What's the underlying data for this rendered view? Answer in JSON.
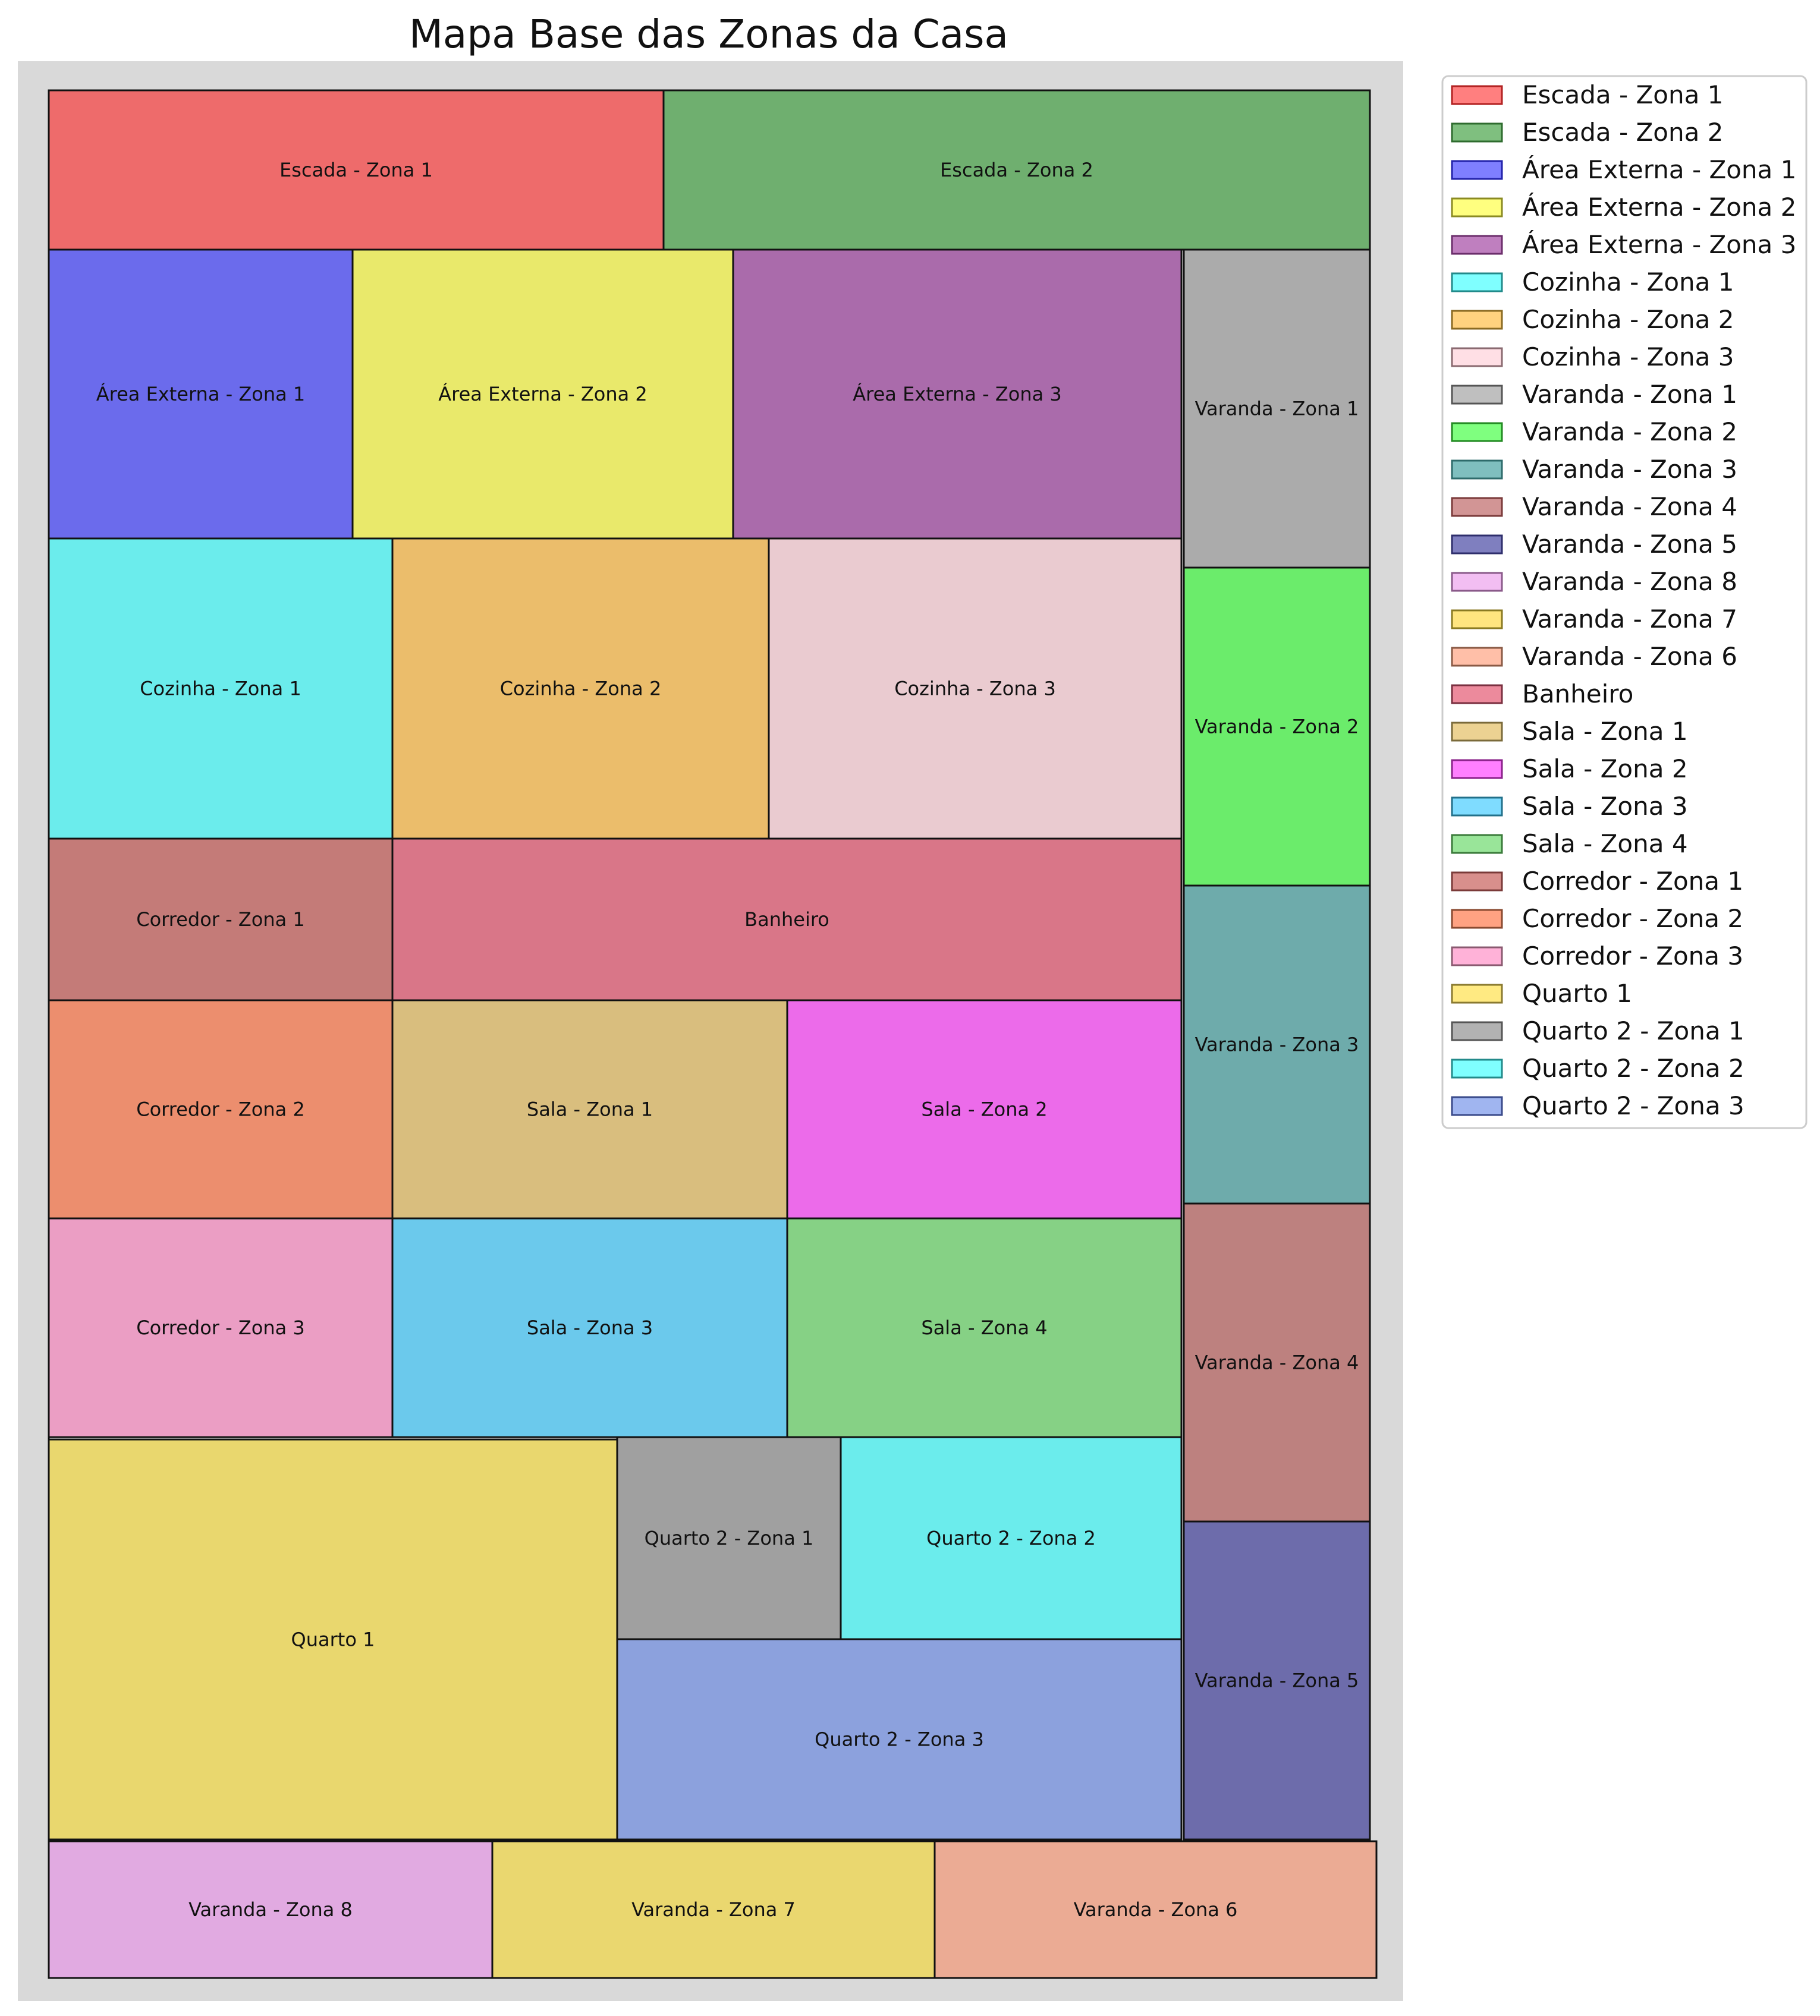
{
  "title": "Mapa Base das Zonas da Casa",
  "zones": [
    {
      "label": "Escada - Zona 1",
      "color": "#ee6b6b"
    },
    {
      "label": "Escada - Zona 2",
      "color": "#6faf6f"
    },
    {
      "label": "Área Externa - Zona 1",
      "color": "#6b6bec"
    },
    {
      "label": "Área Externa - Zona 2",
      "color": "#e9e96b"
    },
    {
      "label": "Área Externa - Zona 3",
      "color": "#aa6bab"
    },
    {
      "label": "Varanda - Zona 1",
      "color": "#ababab"
    },
    {
      "label": "Cozinha - Zona 1",
      "color": "#6becec"
    },
    {
      "label": "Cozinha - Zona 2",
      "color": "#ebbd6b"
    },
    {
      "label": "Cozinha - Zona 3",
      "color": "#eacbd0"
    },
    {
      "label": "Varanda - Zona 2",
      "color": "#6bec6b"
    },
    {
      "label": "Corredor - Zona 1",
      "color": "#c47b78"
    },
    {
      "label": "Banheiro",
      "color": "#d97688"
    },
    {
      "label": "Varanda - Zona 3",
      "color": "#6eabab"
    },
    {
      "label": "Corredor - Zona 2",
      "color": "#ec8e6e"
    },
    {
      "label": "Sala - Zona 1",
      "color": "#d9be7e"
    },
    {
      "label": "Sala - Zona 2",
      "color": "#ec6bea"
    },
    {
      "label": "Varanda - Zona 4",
      "color": "#bd817f"
    },
    {
      "label": "Corredor - Zona 3",
      "color": "#eb9ec4"
    },
    {
      "label": "Sala - Zona 3",
      "color": "#6bc9ec"
    },
    {
      "label": "Sala - Zona 4",
      "color": "#86d185"
    },
    {
      "label": "Quarto 1",
      "color": "#e9d76e"
    },
    {
      "label": "Quarto 2 - Zona 1",
      "color": "#a0a0a0"
    },
    {
      "label": "Quarto 2 - Zona 2",
      "color": "#6becec"
    },
    {
      "label": "Varanda - Zona 5",
      "color": "#6d6cab"
    },
    {
      "label": "Quarto 2 - Zona 3",
      "color": "#8ca1dd"
    },
    {
      "label": "Varanda - Zona 8",
      "color": "#e1aae1"
    },
    {
      "label": "Varanda - Zona 7",
      "color": "#ead76f"
    },
    {
      "label": "Varanda - Zona 6",
      "color": "#ebab94"
    }
  ],
  "legend": [
    {
      "label": "Escada - Zona 1",
      "color": "#ff7f7f",
      "edge": "#b22222"
    },
    {
      "label": "Escada - Zona 2",
      "color": "#7fbf7f",
      "edge": "#2e6b2e"
    },
    {
      "label": "Área Externa - Zona 1",
      "color": "#7f7fff",
      "edge": "#2222aa"
    },
    {
      "label": "Área Externa - Zona 2",
      "color": "#ffff7f",
      "edge": "#8a8a22"
    },
    {
      "label": "Área Externa - Zona 3",
      "color": "#bf7fbf",
      "edge": "#6b2e6b"
    },
    {
      "label": "Cozinha - Zona 1",
      "color": "#7fffff",
      "edge": "#228a8a"
    },
    {
      "label": "Cozinha - Zona 2",
      "color": "#ffd27f",
      "edge": "#8a6a22"
    },
    {
      "label": "Cozinha - Zona 3",
      "color": "#ffdfe5",
      "edge": "#8a6a70"
    },
    {
      "label": "Varanda - Zona 1",
      "color": "#bfbfbf",
      "edge": "#555555"
    },
    {
      "label": "Varanda - Zona 2",
      "color": "#7fff7f",
      "edge": "#228a22"
    },
    {
      "label": "Varanda - Zona 3",
      "color": "#7fbfbf",
      "edge": "#2e6b6b"
    },
    {
      "label": "Varanda - Zona 4",
      "color": "#d29595",
      "edge": "#7a3a3a"
    },
    {
      "label": "Varanda - Zona 5",
      "color": "#7f7fbf",
      "edge": "#2e2e6b"
    },
    {
      "label": "Varanda - Zona 8",
      "color": "#f2bef2",
      "edge": "#8a5a8a"
    },
    {
      "label": "Varanda - Zona 7",
      "color": "#ffe57f",
      "edge": "#8a7a22"
    },
    {
      "label": "Varanda - Zona 6",
      "color": "#ffbfa8",
      "edge": "#8a5a45"
    },
    {
      "label": "Banheiro",
      "color": "#ec8a9c",
      "edge": "#7a3040"
    },
    {
      "label": "Sala - Zona 1",
      "color": "#ecd292",
      "edge": "#7a6a3a"
    },
    {
      "label": "Sala - Zona 2",
      "color": "#ff7fff",
      "edge": "#8a228a"
    },
    {
      "label": "Sala - Zona 3",
      "color": "#7fdcff",
      "edge": "#22708a"
    },
    {
      "label": "Sala - Zona 4",
      "color": "#99e599",
      "edge": "#3a7a3a"
    },
    {
      "label": "Corredor - Zona 1",
      "color": "#d88f8c",
      "edge": "#7a3a38"
    },
    {
      "label": "Corredor - Zona 2",
      "color": "#ffa282",
      "edge": "#8a4a30"
    },
    {
      "label": "Corredor - Zona 3",
      "color": "#ffb2d8",
      "edge": "#8a5a70"
    },
    {
      "label": "Quarto 1",
      "color": "#ffea82",
      "edge": "#8a7a30"
    },
    {
      "label": "Quarto 2 - Zona 1",
      "color": "#b2b2b2",
      "edge": "#555555"
    },
    {
      "label": "Quarto 2 - Zona 2",
      "color": "#7fffff",
      "edge": "#228a8a"
    },
    {
      "label": "Quarto 2 - Zona 3",
      "color": "#a0b5f0",
      "edge": "#3a4a8a"
    }
  ]
}
